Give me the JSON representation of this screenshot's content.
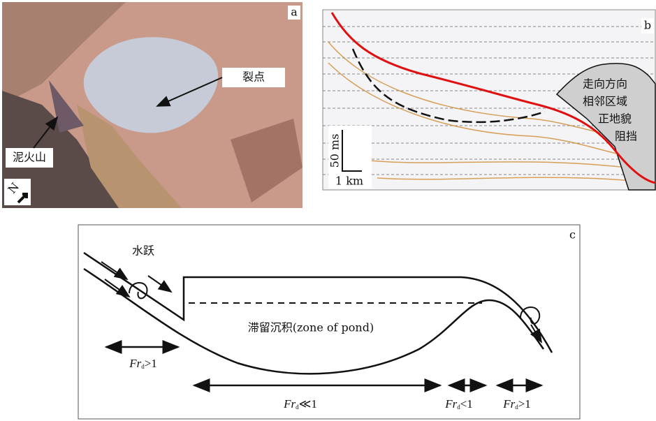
{
  "panel_a": {
    "label": "a",
    "knickpoint": "裂点",
    "mud_volcano": "泥火山",
    "compass": "N"
  },
  "panel_b": {
    "label": "b",
    "annotation_lines": [
      "走向方向",
      "相邻区域",
      "正地貌",
      "阻挡"
    ],
    "scale_vertical": "50 ms",
    "scale_horizontal": "1 km"
  },
  "panel_c": {
    "label": "c",
    "hydraulic_jump": "水跃",
    "pond_zone": "滞留沉积(zone of pond)",
    "froude_labels": [
      {
        "symbol": "Fr",
        "subscript": "d",
        "relation": ">1"
      },
      {
        "symbol": "Fr",
        "subscript": "d",
        "relation": "≪1"
      },
      {
        "symbol": "Fr",
        "subscript": "d",
        "relation": "<1"
      },
      {
        "symbol": "Fr",
        "subscript": "d",
        "relation": ">1"
      }
    ]
  }
}
